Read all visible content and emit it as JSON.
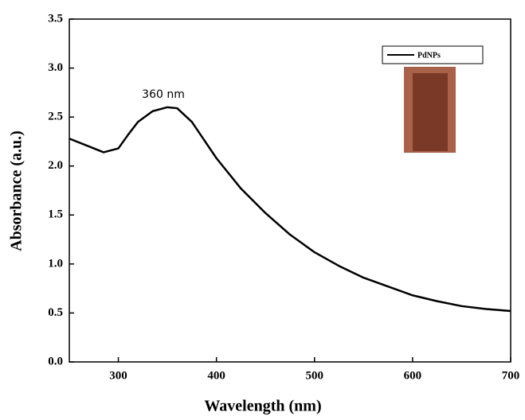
{
  "chart_data": {
    "type": "line",
    "x_label": "Wavelength (nm)",
    "y_label": "Absorbance (a.u.)",
    "x": [
      250,
      270,
      285,
      300,
      310,
      320,
      335,
      350,
      360,
      375,
      400,
      425,
      450,
      475,
      500,
      525,
      550,
      575,
      600,
      625,
      650,
      675,
      700
    ],
    "series": [
      {
        "name": "PdNPs",
        "color": "#000000",
        "values": [
          2.28,
          2.2,
          2.14,
          2.18,
          2.32,
          2.45,
          2.56,
          2.6,
          2.59,
          2.45,
          2.08,
          1.77,
          1.52,
          1.3,
          1.12,
          0.98,
          0.86,
          0.77,
          0.68,
          0.62,
          0.57,
          0.54,
          0.52
        ]
      }
    ],
    "xlim": [
      250,
      700
    ],
    "xticks": [
      300,
      400,
      500,
      600,
      700
    ],
    "ylim": [
      0,
      3.5
    ],
    "yticks": [
      {
        "value": 0,
        "label": "0.0"
      },
      0.5,
      {
        "value": 1,
        "label": "1.0"
      },
      1.5,
      {
        "value": 2,
        "label": "2.0"
      },
      2.5,
      {
        "value": 3,
        "label": "3.0"
      },
      3.5
    ],
    "annotations": [
      {
        "text": "360 nm"
      }
    ],
    "legend": "upper right"
  }
}
